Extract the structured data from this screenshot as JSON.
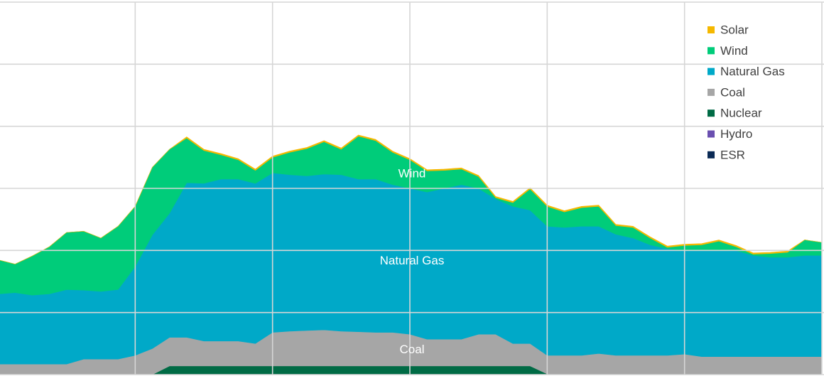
{
  "chart_data": {
    "type": "stacked_area",
    "x": [
      0,
      0.5,
      1,
      1.5,
      2,
      2.5,
      3,
      3.5,
      4,
      4.5,
      5,
      5.5,
      6,
      6.5,
      7,
      7.5,
      8,
      8.5,
      9,
      9.5,
      10,
      10.5,
      11,
      11.5,
      12,
      12.5,
      13,
      13.5,
      14,
      14.5,
      15,
      15.5,
      16,
      16.5,
      17,
      17.5,
      18,
      18.5,
      19,
      19.5,
      20,
      20.5,
      21,
      21.5,
      22,
      22.5,
      23,
      23.5,
      24
    ],
    "xlim": [
      0,
      24
    ],
    "xticks": [
      0,
      4,
      8,
      12,
      16,
      20,
      24
    ],
    "ylim": [
      0,
      6
    ],
    "yticks": [
      0,
      1,
      2,
      3,
      4,
      5,
      6
    ],
    "grid": true,
    "legend": "top-right",
    "series": [
      {
        "name": "ESR",
        "color": "#0b2a55",
        "values": [
          0,
          0,
          0,
          0,
          0,
          0,
          0,
          0,
          0,
          0,
          0,
          0,
          0,
          0,
          0,
          0,
          0,
          0,
          0,
          0,
          0,
          0,
          0,
          0,
          0,
          0,
          0,
          0,
          0,
          0,
          0,
          0,
          0,
          0,
          0,
          0,
          0,
          0,
          0,
          0,
          0,
          0,
          0,
          0,
          0,
          0,
          0,
          0,
          0
        ]
      },
      {
        "name": "Hydro",
        "color": "#6a4fb0",
        "values": [
          0,
          0,
          0,
          0,
          0,
          0,
          0,
          0,
          0,
          0,
          0,
          0,
          0,
          0,
          0,
          0,
          0,
          0,
          0,
          0,
          0,
          0,
          0,
          0,
          0,
          0,
          0,
          0,
          0,
          0,
          0,
          0,
          0.01,
          0.01,
          0.01,
          0.01,
          0.01,
          0.01,
          0.01,
          0.01,
          0.01,
          0.01,
          0.01,
          0.01,
          0.01,
          0.01,
          0.01,
          0.01,
          0.01
        ]
      },
      {
        "name": "Nuclear",
        "color": "#006b45",
        "values": [
          0,
          0,
          0,
          0,
          0,
          0,
          0,
          0,
          0,
          0,
          0.14,
          0.14,
          0.14,
          0.14,
          0.14,
          0.14,
          0.14,
          0.14,
          0.14,
          0.14,
          0.14,
          0.14,
          0.14,
          0.14,
          0.14,
          0.14,
          0.14,
          0.14,
          0.14,
          0.14,
          0.14,
          0.14,
          0,
          0,
          0,
          0,
          0,
          0,
          0,
          0,
          0,
          0,
          0,
          0,
          0,
          0,
          0,
          0,
          0
        ]
      },
      {
        "name": "Coal",
        "color": "#a6a6a6",
        "values": [
          0.17,
          0.17,
          0.17,
          0.17,
          0.17,
          0.25,
          0.25,
          0.25,
          0.31,
          0.42,
          0.46,
          0.46,
          0.4,
          0.4,
          0.4,
          0.36,
          0.54,
          0.56,
          0.57,
          0.58,
          0.56,
          0.55,
          0.54,
          0.54,
          0.51,
          0.43,
          0.43,
          0.43,
          0.51,
          0.51,
          0.36,
          0.36,
          0.3,
          0.3,
          0.3,
          0.33,
          0.3,
          0.3,
          0.3,
          0.3,
          0.32,
          0.28,
          0.28,
          0.28,
          0.28,
          0.28,
          0.28,
          0.28,
          0.28
        ]
      },
      {
        "name": "Natural Gas",
        "color": "#00a9c8",
        "values": [
          1.13,
          1.15,
          1.11,
          1.13,
          1.2,
          1.11,
          1.09,
          1.12,
          1.43,
          1.83,
          2.0,
          2.49,
          2.54,
          2.61,
          2.61,
          2.58,
          2.57,
          2.52,
          2.49,
          2.51,
          2.52,
          2.46,
          2.47,
          2.38,
          2.35,
          2.37,
          2.43,
          2.49,
          2.35,
          2.18,
          2.21,
          2.15,
          2.08,
          2.06,
          2.08,
          2.05,
          1.95,
          1.89,
          1.78,
          1.72,
          1.67,
          1.72,
          1.72,
          1.71,
          1.63,
          1.6,
          1.6,
          1.63,
          1.63
        ]
      },
      {
        "name": "Wind",
        "color": "#00cc7a",
        "values": [
          0.55,
          0.46,
          0.63,
          0.76,
          0.92,
          0.95,
          0.86,
          1.02,
          0.97,
          1.09,
          1.03,
          0.72,
          0.53,
          0.39,
          0.31,
          0.21,
          0.25,
          0.36,
          0.44,
          0.52,
          0.41,
          0.69,
          0.62,
          0.52,
          0.46,
          0.34,
          0.29,
          0.25,
          0.19,
          0.02,
          0.06,
          0.34,
          0.32,
          0.25,
          0.3,
          0.32,
          0.14,
          0.17,
          0.11,
          0.02,
          0.08,
          0.08,
          0.14,
          0.06,
          0.02,
          0.06,
          0.08,
          0.25,
          0.21
        ]
      },
      {
        "name": "Solar",
        "color": "#f5b800",
        "values": [
          0,
          0,
          0,
          0,
          0,
          0,
          0,
          0,
          0,
          0,
          0,
          0.02,
          0.02,
          0.02,
          0.02,
          0.02,
          0.02,
          0.02,
          0.02,
          0.02,
          0.02,
          0.02,
          0.02,
          0.02,
          0.02,
          0.02,
          0.02,
          0.02,
          0.02,
          0.02,
          0.02,
          0.02,
          0.02,
          0.02,
          0.02,
          0.02,
          0.02,
          0.02,
          0.02,
          0.02,
          0.02,
          0.02,
          0.02,
          0.02,
          0.02,
          0.02,
          0.02,
          0,
          0
        ]
      }
    ],
    "annotations": [
      {
        "text": "Wind",
        "series": 5
      },
      {
        "text": "Natural Gas",
        "series": 4
      },
      {
        "text": "Coal",
        "series": 3
      }
    ]
  }
}
